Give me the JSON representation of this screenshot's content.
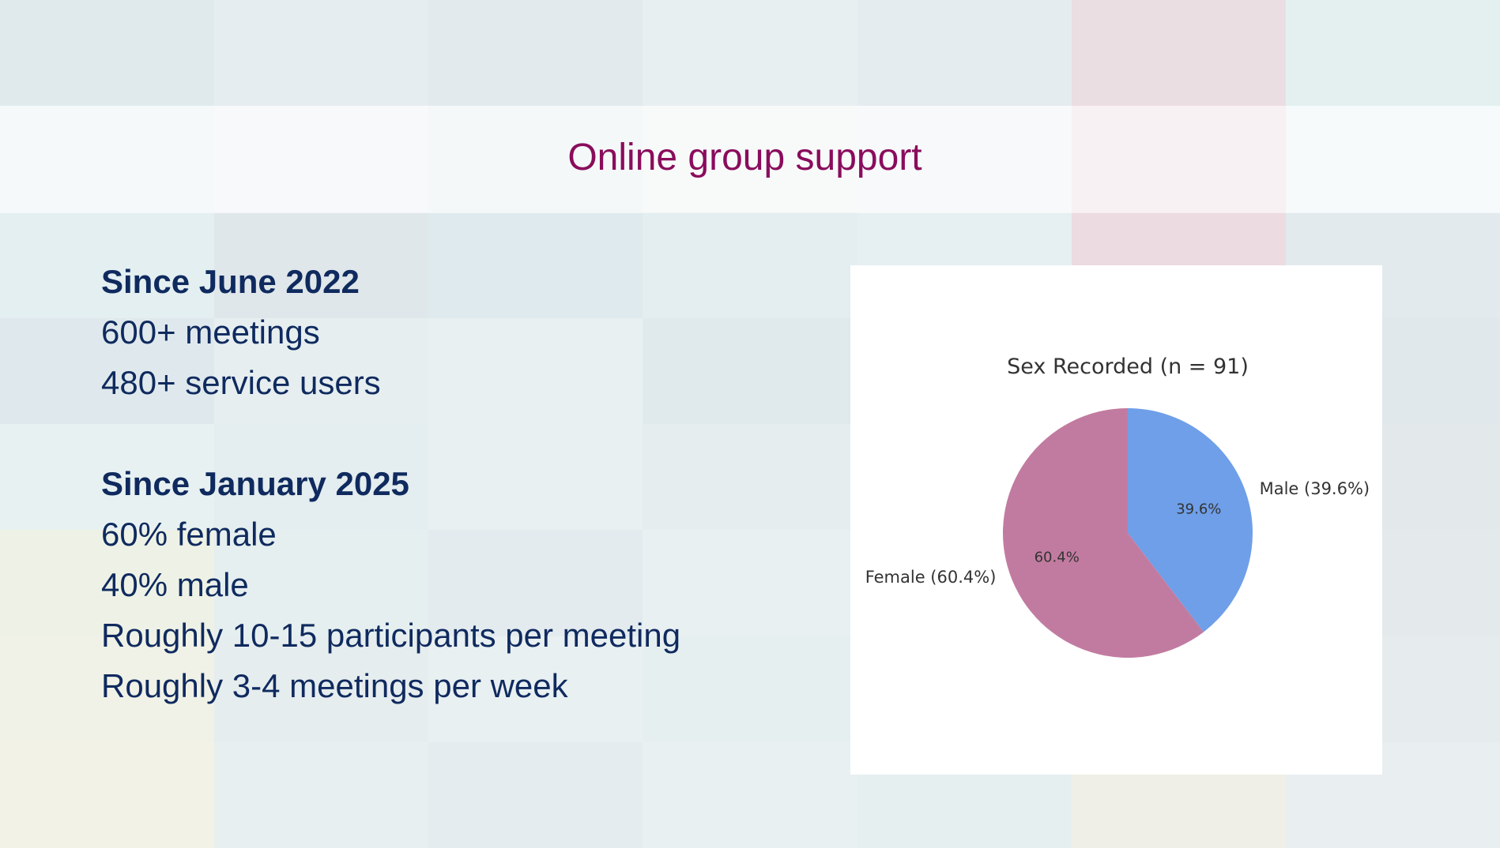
{
  "slide": {
    "title": "Online group support"
  },
  "content": {
    "section1_heading": "Since June 2022",
    "section1_lines": [
      "600+ meetings",
      "480+ service users"
    ],
    "section2_heading": "Since January 2025",
    "section2_lines": [
      "60% female",
      "40% male",
      "Roughly 10-15 participants per meeting",
      "Roughly 3-4 meetings per week"
    ]
  },
  "chart_data": {
    "type": "pie",
    "title": "Sex Recorded (n = 91)",
    "slices": [
      {
        "label": "Male (39.6%)",
        "value": 39.6,
        "pct_label": "39.6%",
        "color": "#6f9fe8"
      },
      {
        "label": "Female (60.4%)",
        "value": 60.4,
        "pct_label": "60.4%",
        "color": "#c27ba0"
      }
    ],
    "start": "top",
    "direction": "clockwise"
  },
  "colors": {
    "title": "#8a0c5c",
    "body_text": "#0f2a5e"
  }
}
